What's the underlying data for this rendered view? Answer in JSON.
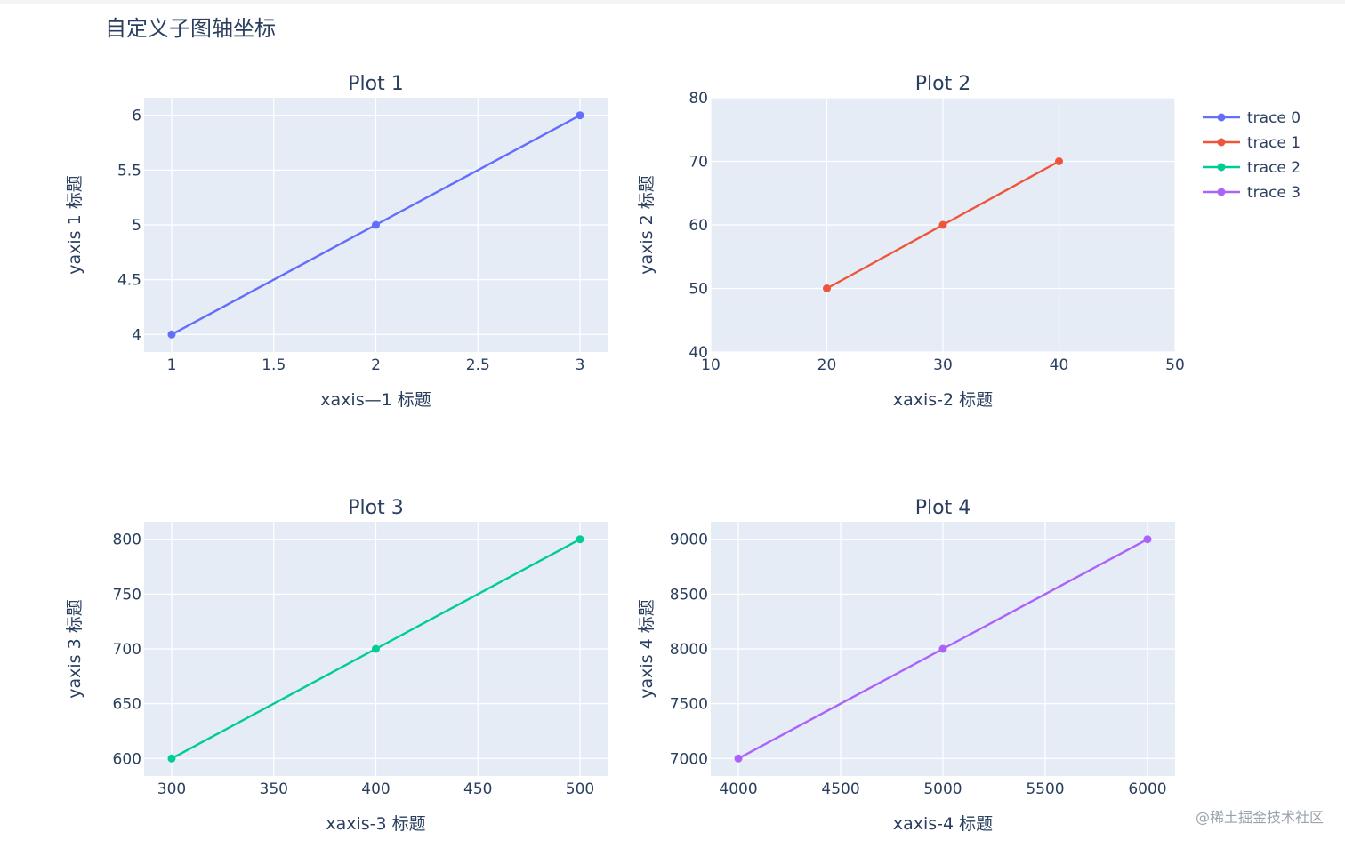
{
  "figure_title": "自定义子图轴坐标",
  "watermark": "@稀土掘金技术社区",
  "colors": {
    "plot_bg": "#e5ecf6",
    "grid": "#ffffff",
    "text": "#2a3f5f"
  },
  "chart_data": [
    {
      "type": "line",
      "title": "Plot 1",
      "xlabel": "xaxis—1 标题",
      "ylabel": "yaxis 1 标题",
      "xlim": [
        0.865,
        3.135
      ],
      "ylim": [
        3.84,
        6.16
      ],
      "xticks": [
        1,
        1.5,
        2,
        2.5,
        3
      ],
      "yticks": [
        4,
        4.5,
        5,
        5.5,
        6
      ],
      "series": [
        {
          "name": "trace 0",
          "x": [
            1,
            2,
            3
          ],
          "y": [
            4,
            5,
            6
          ],
          "color": "#636efa"
        }
      ]
    },
    {
      "type": "line",
      "title": "Plot 2",
      "xlabel": "xaxis-2 标题",
      "ylabel": "yaxis 2 标题",
      "xlim": [
        10,
        50
      ],
      "ylim": [
        40,
        80
      ],
      "xticks": [
        10,
        20,
        30,
        40,
        50
      ],
      "yticks": [
        40,
        50,
        60,
        70,
        80
      ],
      "series": [
        {
          "name": "trace 1",
          "x": [
            20,
            30,
            40
          ],
          "y": [
            50,
            60,
            70
          ],
          "color": "#ef553b"
        }
      ]
    },
    {
      "type": "line",
      "title": "Plot 3",
      "xlabel": "xaxis-3 标题",
      "ylabel": "yaxis 3 标题",
      "xlim": [
        286.5,
        513.5
      ],
      "ylim": [
        584,
        816
      ],
      "xticks": [
        300,
        350,
        400,
        450,
        500
      ],
      "yticks": [
        600,
        650,
        700,
        750,
        800
      ],
      "series": [
        {
          "name": "trace 2",
          "x": [
            300,
            400,
            500
          ],
          "y": [
            600,
            700,
            800
          ],
          "color": "#00cc96"
        }
      ]
    },
    {
      "type": "line",
      "title": "Plot 4",
      "xlabel": "xaxis-4 标题",
      "ylabel": "yaxis 4 标题",
      "xlim": [
        3865,
        6135
      ],
      "ylim": [
        6840,
        9160
      ],
      "xticks": [
        4000,
        4500,
        5000,
        5500,
        6000
      ],
      "yticks": [
        7000,
        7500,
        8000,
        8500,
        9000
      ],
      "series": [
        {
          "name": "trace 3",
          "x": [
            4000,
            5000,
            6000
          ],
          "y": [
            7000,
            8000,
            9000
          ],
          "color": "#ab63fa"
        }
      ]
    }
  ],
  "legend": {
    "placement": "top-right",
    "items": [
      {
        "name": "trace 0",
        "color": "#636efa"
      },
      {
        "name": "trace 1",
        "color": "#ef553b"
      },
      {
        "name": "trace 2",
        "color": "#00cc96"
      },
      {
        "name": "trace 3",
        "color": "#ab63fa"
      }
    ]
  }
}
